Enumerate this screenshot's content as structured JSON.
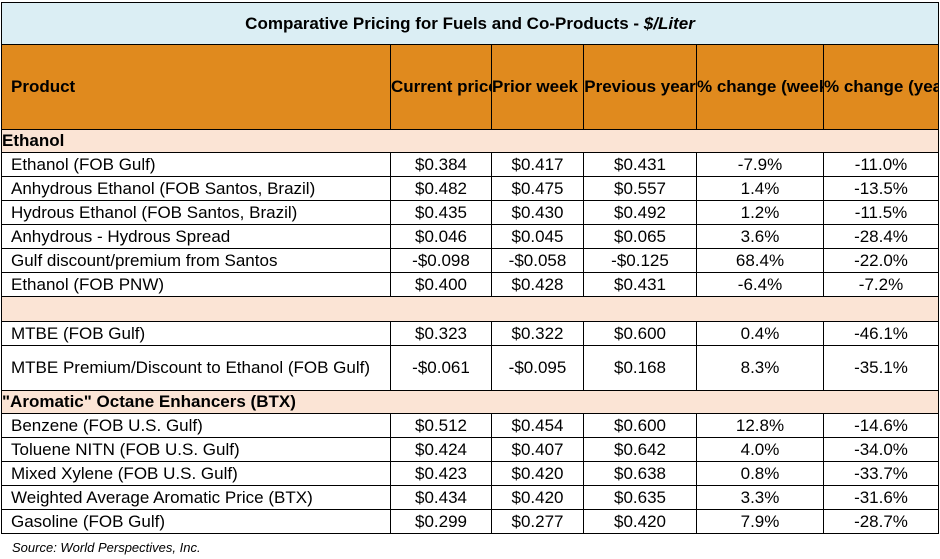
{
  "title": {
    "main": "Comparative Pricing for Fuels and Co-Products - ",
    "unit": "$/Liter"
  },
  "headers": {
    "product": "Product",
    "current_price": "Current price",
    "prior_week_avg": "Prior week average",
    "previous_year": "Previous year",
    "pct_week": "% change (week over week)",
    "pct_year": "% change (year over year)"
  },
  "sections": {
    "ethanol": "Ethanol",
    "btx": "\"Aromatic\" Octane Enhancers (BTX)"
  },
  "rows": [
    {
      "product": "Ethanol (FOB Gulf)",
      "current": "$0.384",
      "prior": "$0.417",
      "prev_year": "$0.431",
      "pct_week": "-7.9%",
      "pct_year": "-11.0%"
    },
    {
      "product": "Anhydrous Ethanol (FOB Santos, Brazil)",
      "current": "$0.482",
      "prior": "$0.475",
      "prev_year": "$0.557",
      "pct_week": "1.4%",
      "pct_year": "-13.5%"
    },
    {
      "product": "Hydrous Ethanol (FOB Santos, Brazil)",
      "current": "$0.435",
      "prior": "$0.430",
      "prev_year": "$0.492",
      "pct_week": "1.2%",
      "pct_year": "-11.5%"
    },
    {
      "product": "Anhydrous - Hydrous Spread",
      "current": "$0.046",
      "prior": "$0.045",
      "prev_year": "$0.065",
      "pct_week": "3.6%",
      "pct_year": "-28.4%"
    },
    {
      "product": "Gulf discount/premium from Santos",
      "current": "-$0.098",
      "prior": "-$0.058",
      "prev_year": "-$0.125",
      "pct_week": "68.4%",
      "pct_year": "-22.0%"
    },
    {
      "product": "Ethanol (FOB PNW)",
      "current": "$0.400",
      "prior": "$0.428",
      "prev_year": "$0.431",
      "pct_week": "-6.4%",
      "pct_year": "-7.2%"
    },
    {
      "product": "MTBE (FOB Gulf)",
      "current": "$0.323",
      "prior": "$0.322",
      "prev_year": "$0.600",
      "pct_week": "0.4%",
      "pct_year": "-46.1%"
    },
    {
      "product": "MTBE Premium/Discount to Ethanol (FOB Gulf)",
      "current": "-$0.061",
      "prior": "-$0.095",
      "prev_year": "$0.168",
      "pct_week": "8.3%",
      "pct_year": "-35.1%"
    },
    {
      "product": "Benzene (FOB U.S. Gulf)",
      "current": "$0.512",
      "prior": "$0.454",
      "prev_year": "$0.600",
      "pct_week": "12.8%",
      "pct_year": "-14.6%"
    },
    {
      "product": "Toluene NITN (FOB U.S. Gulf)",
      "current": "$0.424",
      "prior": "$0.407",
      "prev_year": "$0.642",
      "pct_week": "4.0%",
      "pct_year": "-34.0%"
    },
    {
      "product": "Mixed Xylene (FOB U.S. Gulf)",
      "current": "$0.423",
      "prior": "$0.420",
      "prev_year": "$0.638",
      "pct_week": "0.8%",
      "pct_year": "-33.7%"
    },
    {
      "product": "Weighted Average Aromatic Price (BTX)",
      "current": "$0.434",
      "prior": "$0.420",
      "prev_year": "$0.635",
      "pct_week": "3.3%",
      "pct_year": "-31.6%"
    },
    {
      "product": "Gasoline (FOB Gulf)",
      "current": "$0.299",
      "prior": "$0.277",
      "prev_year": "$0.420",
      "pct_week": "7.9%",
      "pct_year": "-28.7%"
    }
  ],
  "source": "Source: World Perspectives, Inc.",
  "colors": {
    "title_bg": "#dbeef4",
    "header_bg": "#e08a1e",
    "section_bg": "#fbe4d5"
  }
}
